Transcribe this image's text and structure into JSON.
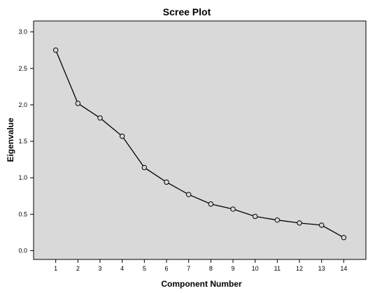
{
  "chart_data": {
    "type": "line",
    "title": "Scree Plot",
    "xlabel": "Component Number",
    "ylabel": "Eigenvalue",
    "x": [
      1,
      2,
      3,
      4,
      5,
      6,
      7,
      8,
      9,
      10,
      11,
      12,
      13,
      14
    ],
    "y": [
      2.75,
      2.02,
      1.82,
      1.57,
      1.14,
      0.94,
      0.77,
      0.64,
      0.57,
      0.47,
      0.42,
      0.38,
      0.35,
      0.18
    ],
    "xticks": [
      "1",
      "2",
      "3",
      "4",
      "5",
      "6",
      "7",
      "8",
      "9",
      "10",
      "11",
      "12",
      "13",
      "14"
    ],
    "yticks": [
      "0.0",
      "0.5",
      "1.0",
      "1.5",
      "2.0",
      "2.5",
      "3.0"
    ],
    "ylim": [
      -0.12,
      3.15
    ],
    "xlim": [
      0,
      15
    ],
    "grid": false,
    "marker": "circle",
    "colors": {
      "plot_background": "#d9d9d9",
      "line": "#000000",
      "marker_fill": "#d9d9d9"
    }
  }
}
